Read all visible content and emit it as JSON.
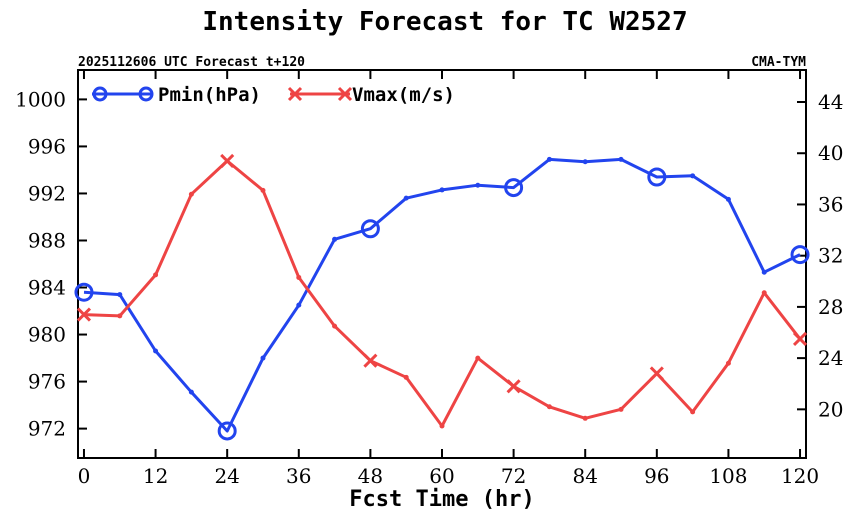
{
  "chart_data": {
    "type": "line",
    "title": "Intensity Forecast for TC W2527",
    "subtitle_left": "2025112606 UTC Forecast t+120",
    "subtitle_right": "CMA-TYM",
    "xlabel": "Fcst Time (hr)",
    "x_ticks": [
      0,
      12,
      24,
      36,
      48,
      60,
      72,
      84,
      96,
      108,
      120
    ],
    "xlim": [
      -1,
      121
    ],
    "y_left_ticks": [
      972,
      976,
      980,
      984,
      988,
      992,
      996,
      1000
    ],
    "y_left_lim": [
      969.5,
      1002.5
    ],
    "y_right_ticks": [
      20,
      24,
      28,
      32,
      36,
      40,
      44
    ],
    "y_right_lim": [
      16.2,
      46.5
    ],
    "series": [
      {
        "name": "Pmin(hPa)",
        "axis": "left",
        "color": "#2244ee",
        "marker": "circle",
        "x": [
          0,
          6,
          12,
          18,
          24,
          30,
          36,
          42,
          48,
          54,
          60,
          66,
          72,
          78,
          84,
          90,
          96,
          102,
          108,
          114,
          120
        ],
        "values": [
          983.6,
          983.4,
          978.6,
          975.1,
          971.8,
          978.0,
          982.5,
          988.1,
          989.0,
          991.6,
          992.3,
          992.7,
          992.5,
          994.9,
          994.7,
          994.9,
          993.4,
          993.5,
          991.5,
          985.3,
          986.8
        ],
        "marked_x": [
          0,
          24,
          48,
          72,
          96,
          120
        ]
      },
      {
        "name": "Vmax(m/s)",
        "axis": "right",
        "color": "#ee4444",
        "marker": "x",
        "x": [
          0,
          6,
          12,
          18,
          24,
          30,
          36,
          42,
          48,
          54,
          60,
          66,
          72,
          78,
          84,
          90,
          96,
          102,
          108,
          114,
          120
        ],
        "values": [
          27.4,
          27.3,
          30.5,
          36.8,
          39.4,
          37.1,
          30.3,
          26.5,
          23.8,
          22.5,
          18.7,
          24.0,
          21.8,
          20.2,
          19.3,
          20.0,
          22.8,
          19.8,
          23.6,
          29.1,
          25.5
        ],
        "marked_x": [
          0,
          24,
          48,
          72,
          96,
          120
        ]
      }
    ],
    "legend_position": "top-left"
  }
}
